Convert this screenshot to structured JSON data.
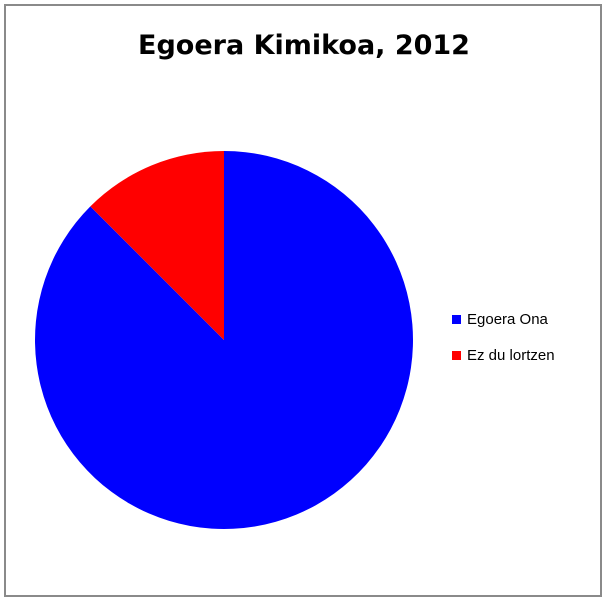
{
  "chart_data": {
    "type": "pie",
    "title": "Egoera Kimikoa, 2012",
    "categories": [
      "Egoera Ona",
      "Ez du lortzen"
    ],
    "values": [
      87.5,
      12.5
    ],
    "colors": [
      "#0000ff",
      "#ff0000"
    ],
    "legend": "right",
    "start_angle_deg": 0,
    "direction": "clockwise"
  }
}
